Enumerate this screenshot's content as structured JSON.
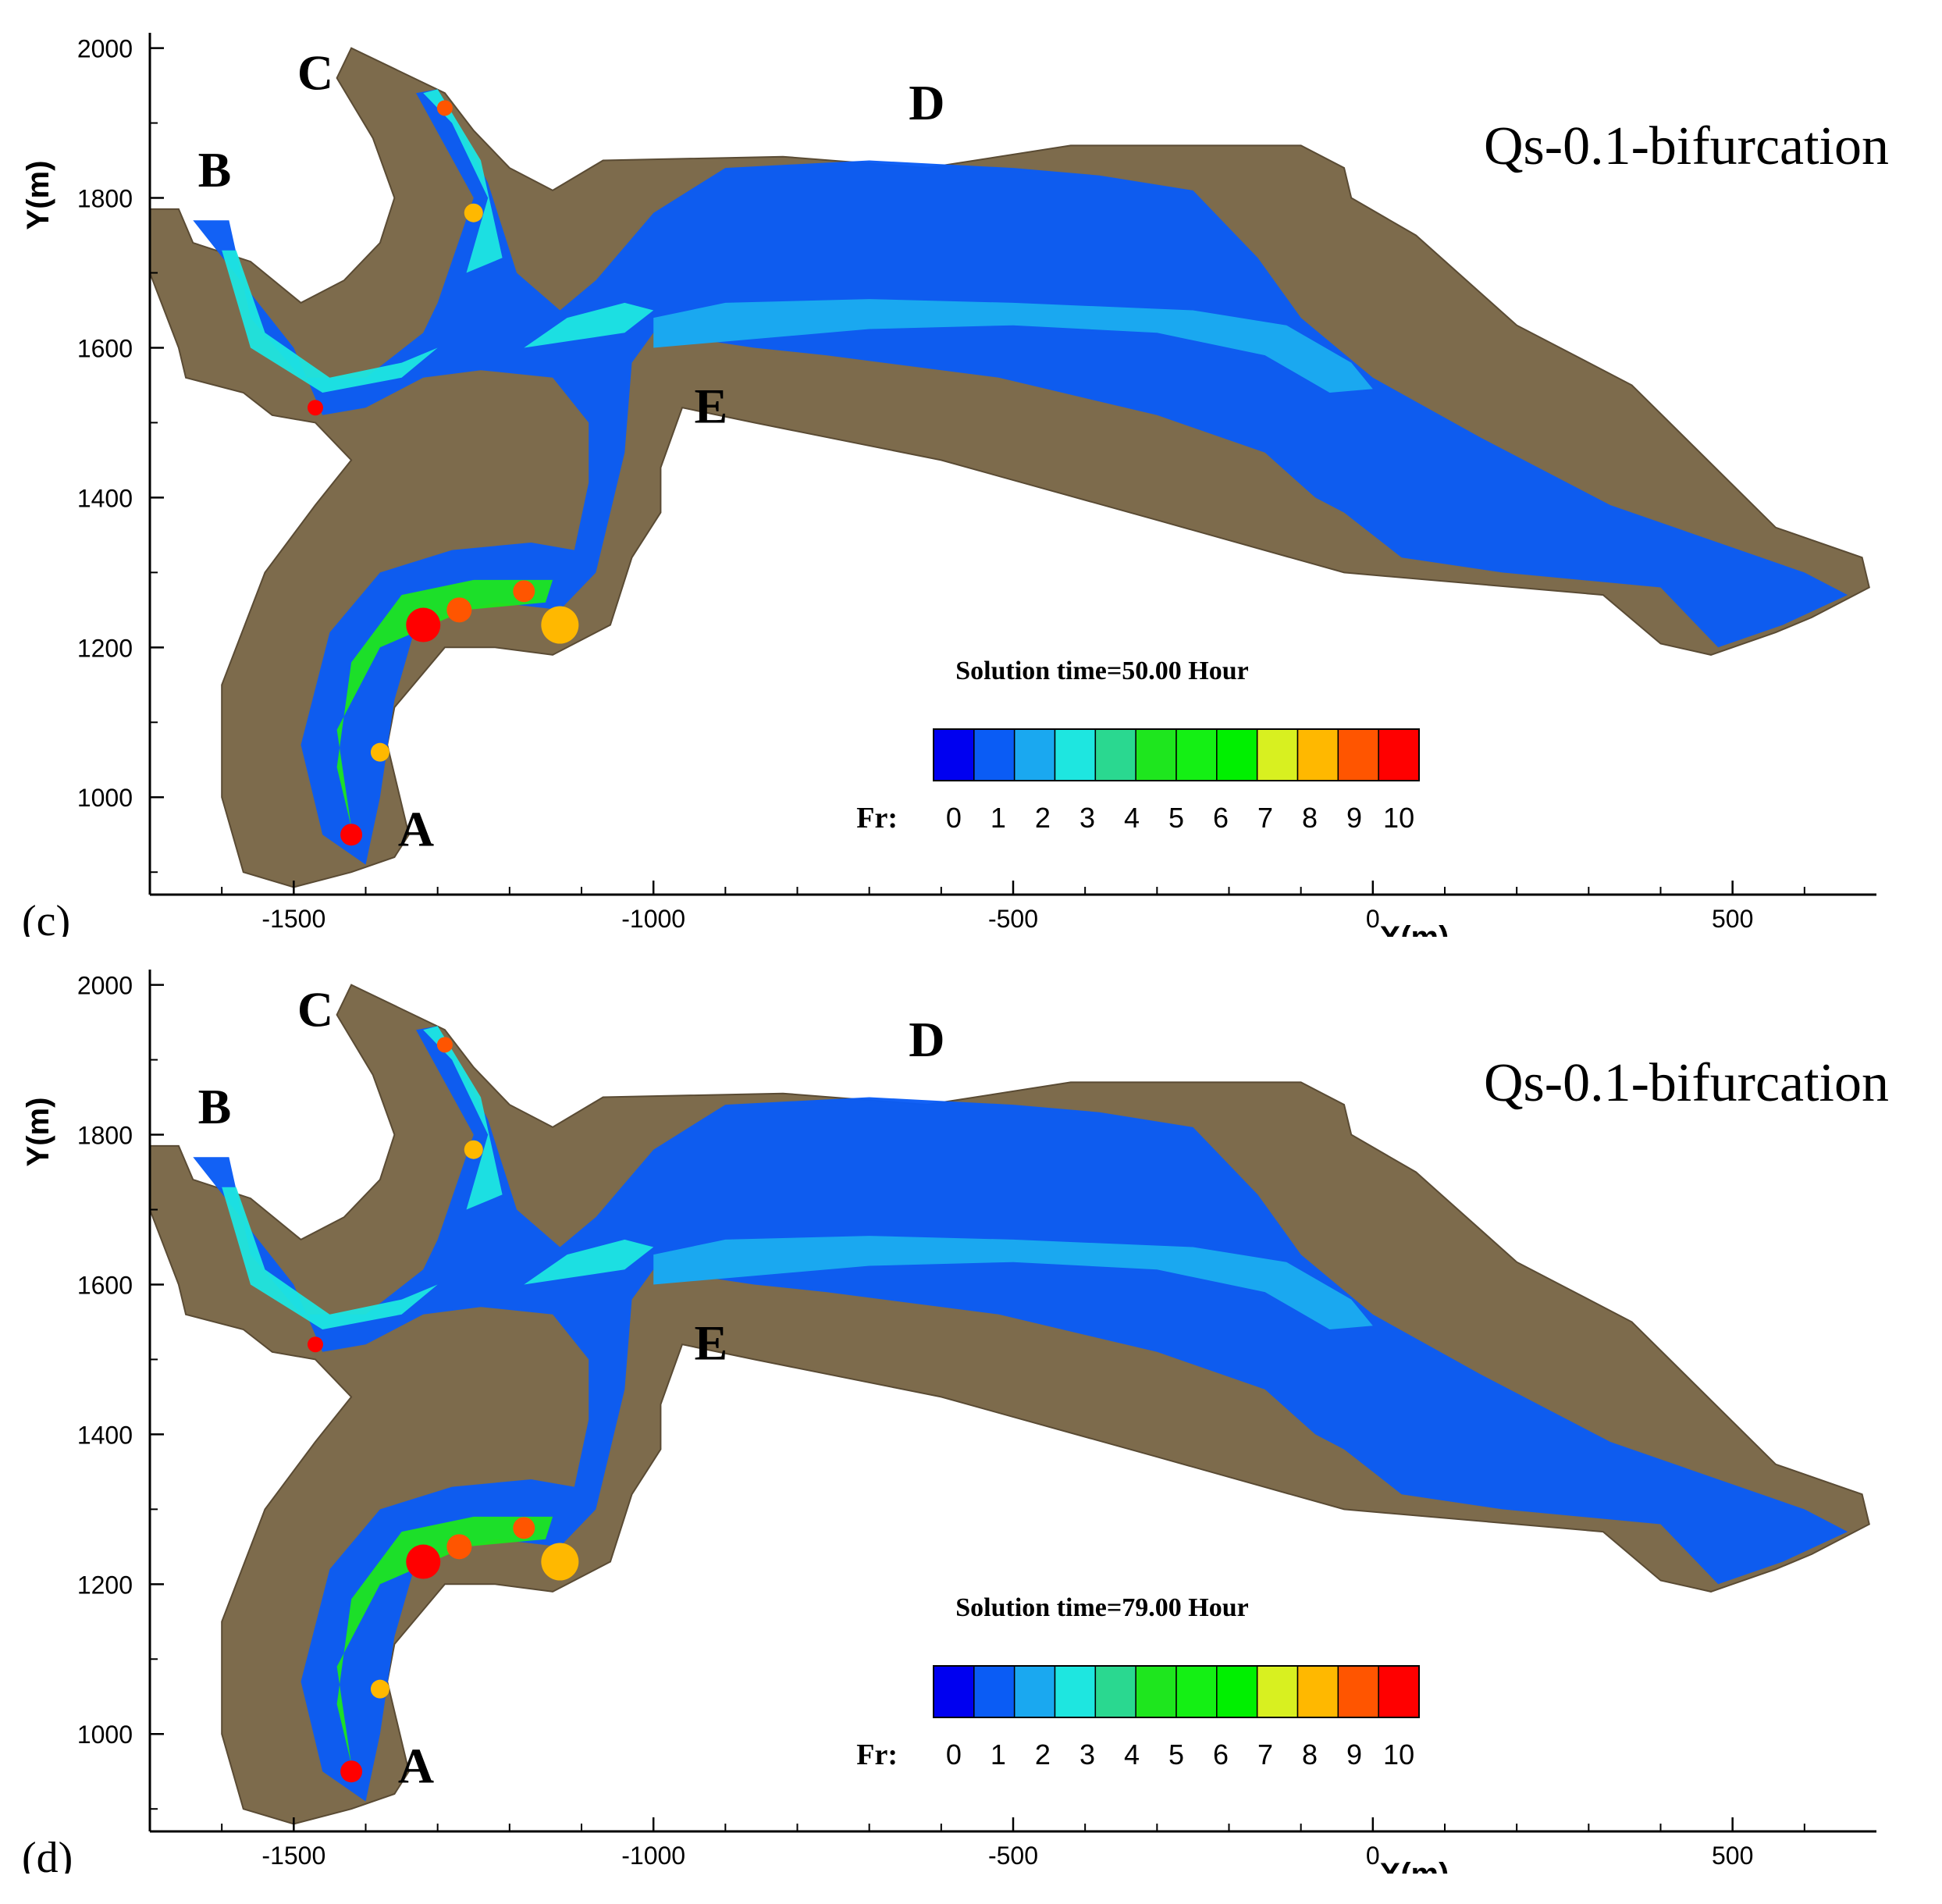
{
  "chart_data": [
    {
      "type": "heatmap",
      "panel_label": "(c)",
      "title": "Qs-0.1-bifurcation",
      "solution_time": "Solution time=50.00 Hour",
      "xlabel": "X(m)",
      "ylabel": "Y(m)",
      "xlim": [
        -1700,
        700
      ],
      "ylim": [
        870,
        2010
      ],
      "x_ticks": [
        "-1500",
        "-1000",
        "-500",
        "0",
        "500"
      ],
      "y_ticks": [
        "1000",
        "1200",
        "1400",
        "1600",
        "1800",
        "2000"
      ],
      "point_labels": [
        {
          "text": "A",
          "x": -1330,
          "y": 935
        },
        {
          "text": "B",
          "x": -1610,
          "y": 1815
        },
        {
          "text": "C",
          "x": -1470,
          "y": 1945
        },
        {
          "text": "D",
          "x": -620,
          "y": 1905
        },
        {
          "text": "E",
          "x": -920,
          "y": 1500
        }
      ],
      "colorbar": {
        "label": "Fr:",
        "ticks": [
          "0",
          "1",
          "2",
          "3",
          "4",
          "5",
          "6",
          "7",
          "8",
          "9",
          "10"
        ],
        "colors": [
          "#0000f0",
          "#0a5cf5",
          "#1aa8f0",
          "#1ee6e0",
          "#2ad890",
          "#1ee61e",
          "#14f014",
          "#00f000",
          "#d8f020",
          "#ffb800",
          "#ff5500",
          "#ff0000"
        ]
      },
      "fr_scale": [
        "#0000f0",
        "#0a5cf5",
        "#1aa8f0",
        "#1ee6e0",
        "#2ad890",
        "#1ee61e",
        "#14f014",
        "#00f000",
        "#d8f020",
        "#ffb800",
        "#ff5500",
        "#ff0000"
      ]
    },
    {
      "type": "heatmap",
      "panel_label": "(d)",
      "title": "Qs-0.1-bifurcation",
      "solution_time": "Solution time=79.00 Hour",
      "xlabel": "X(m)",
      "ylabel": "Y(m)",
      "xlim": [
        -1700,
        700
      ],
      "ylim": [
        870,
        2010
      ],
      "x_ticks": [
        "-1500",
        "-1000",
        "-500",
        "0",
        "500"
      ],
      "y_ticks": [
        "1000",
        "1200",
        "1400",
        "1600",
        "1800",
        "2000"
      ],
      "point_labels": [
        {
          "text": "A",
          "x": -1330,
          "y": 935
        },
        {
          "text": "B",
          "x": -1610,
          "y": 1815
        },
        {
          "text": "C",
          "x": -1470,
          "y": 1945
        },
        {
          "text": "D",
          "x": -620,
          "y": 1905
        },
        {
          "text": "E",
          "x": -920,
          "y": 1500
        }
      ],
      "colorbar": {
        "label": "Fr:",
        "ticks": [
          "0",
          "1",
          "2",
          "3",
          "4",
          "5",
          "6",
          "7",
          "8",
          "9",
          "10"
        ],
        "colors": [
          "#0000f0",
          "#0a5cf5",
          "#1aa8f0",
          "#1ee6e0",
          "#2ad890",
          "#1ee61e",
          "#14f014",
          "#00f000",
          "#d8f020",
          "#ffb800",
          "#ff5500",
          "#ff0000"
        ]
      }
    }
  ]
}
